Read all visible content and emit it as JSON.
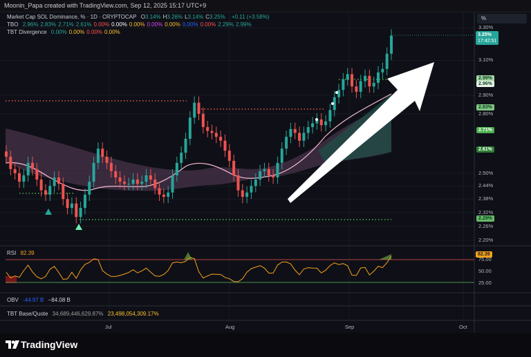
{
  "header": {
    "credit": "Moonin_Papa created with TradingView.com, Sep 12, 2025 15:17 UTC+9"
  },
  "legend": {
    "symbol": "Market Cap SOL Dominance, % · 1D · CRYPTOCAP",
    "ohlc": [
      {
        "k": "O",
        "v": "3.14%"
      },
      {
        "k": "H",
        "v": "3.26%"
      },
      {
        "k": "L",
        "v": "3.14%"
      },
      {
        "k": "C",
        "v": "3.25%"
      }
    ],
    "change": "+0.11 (+3.58%)",
    "tbo_name": "TBO",
    "tbo_values": [
      "2.96%",
      "2.83%",
      "2.71%",
      "2.61%",
      "0.00%",
      "0.00%",
      "0.00%",
      "0.00%",
      "0.00%",
      "0.00%",
      "0.00%",
      "2.29%",
      "2.99%"
    ],
    "tbo_colors": [
      "#26a69a",
      "#26a69a",
      "#26a69a",
      "#26a69a",
      "#ff5252",
      "#ffffff",
      "#fbc02d",
      "#e040fb",
      "#fbc02d",
      "#2962ff",
      "#ff5252",
      "#26a69a",
      "#26a69a"
    ],
    "div_name": "TBT Divergence",
    "div_values": [
      "0.00%",
      "0.00%",
      "0.00%",
      "0.00%"
    ],
    "div_colors": [
      "#26a69a",
      "#fbc02d",
      "#ff5252",
      "#fbc02d"
    ]
  },
  "axis": {
    "unit_button": "%",
    "price_ticks": [
      "3.30%",
      "3.10%",
      "2.90%",
      "2.80%",
      "2.50%",
      "2.44%",
      "2.38%",
      "2.32%",
      "2.26%",
      "2.20%"
    ],
    "rsi_ticks": [
      "75.00",
      "50.00",
      "25.00"
    ],
    "time_ticks": [
      "Jul",
      "Aug",
      "Sep",
      "Oct"
    ]
  },
  "badges": {
    "current_price": "3.25%",
    "countdown": "17:42:51",
    "levels": [
      {
        "text": "2.99%",
        "bg": "#a5d6a7",
        "fg": "#0b3d1b"
      },
      {
        "text": "2.96%",
        "bg": "#e8f5e9",
        "fg": "#0b3d1b"
      },
      {
        "text": "2.83%",
        "bg": "#81c784",
        "fg": "#0b3d1b"
      },
      {
        "text": "2.71%",
        "bg": "#4caf50",
        "fg": "#ffffff"
      },
      {
        "text": "2.61%",
        "bg": "#2e7d32",
        "fg": "#ffffff"
      },
      {
        "text": "2.29%",
        "bg": "#66bb6a",
        "fg": "#0b3d1b"
      }
    ],
    "rsi_value": "82.39"
  },
  "panes": {
    "rsi_label": "RSI",
    "rsi_value": "82.39",
    "obv_label": "OBV",
    "obv_v1": "-44.97 B",
    "obv_v2": "−84.08 B",
    "tbt_label": "TBT Base/Quote",
    "tbt_v1": "34,689,446,629.87%",
    "tbt_v2": "23,498,054,309.17%"
  },
  "brand": {
    "name": "TradingView"
  },
  "colors": {
    "up": "#26a69a",
    "down": "#ef5350",
    "dotted_red": "#ef5350",
    "dotted_green": "#4caf50",
    "rsi_line": "#f7a21b"
  },
  "chart_data": {
    "type": "candlestick",
    "title": "Market Cap SOL Dominance, % · 1D · CRYPTOCAP",
    "x_labels": [
      "Jul",
      "Aug",
      "Sep",
      "Oct"
    ],
    "ylabel": "%",
    "ylim": [
      2.2,
      3.3
    ],
    "scale": "log",
    "candles_close": [
      2.58,
      2.52,
      2.5,
      2.46,
      2.49,
      2.55,
      2.52,
      2.47,
      2.42,
      2.4,
      2.44,
      2.48,
      2.45,
      2.38,
      2.34,
      2.36,
      2.3,
      2.34,
      2.4,
      2.46,
      2.55,
      2.62,
      2.58,
      2.55,
      2.51,
      2.48,
      2.46,
      2.45,
      2.45,
      2.47,
      2.45,
      2.46,
      2.49,
      2.47,
      2.43,
      2.4,
      2.39,
      2.41,
      2.49,
      2.55,
      2.6,
      2.67,
      2.78,
      2.86,
      2.8,
      2.73,
      2.71,
      2.7,
      2.68,
      2.66,
      2.61,
      2.56,
      2.49,
      2.42,
      2.39,
      2.41,
      2.44,
      2.47,
      2.51,
      2.52,
      2.49,
      2.48,
      2.55,
      2.62,
      2.68,
      2.72,
      2.7,
      2.66,
      2.7,
      2.73,
      2.75,
      2.77,
      2.74,
      2.76,
      2.82,
      2.89,
      2.93,
      2.99,
      3.02,
      2.95,
      2.92,
      2.98,
      3.01,
      2.95,
      2.97,
      3.03,
      3.05,
      3.14,
      3.25
    ],
    "levels": [
      {
        "name": "red resistance",
        "value": 2.86
      },
      {
        "name": "green support",
        "value": 2.29
      },
      {
        "name": "green support left",
        "value": 2.4
      },
      {
        "name": "green dotted",
        "value": 2.99
      }
    ],
    "rsi_last": 82.39
  }
}
